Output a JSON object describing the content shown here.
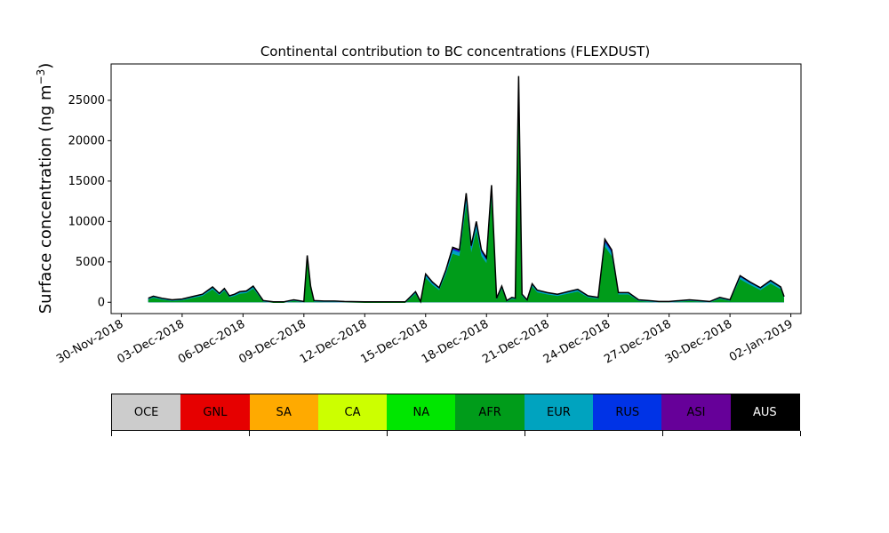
{
  "chart_data": {
    "type": "area",
    "title": "Continental contribution to BC concentrations (FLEXDUST)",
    "ylabel_main": "Surface concentration (ng m",
    "ylabel_sup": "−3",
    "ylabel_close": ")",
    "xlabel": "",
    "ylim": [
      -1400,
      29500
    ],
    "xlim": [
      "2018-11-29T12:00",
      "2019-01-02T12:00"
    ],
    "xticks": [
      "2018-11-30",
      "2018-12-03",
      "2018-12-06",
      "2018-12-09",
      "2018-12-12",
      "2018-12-15",
      "2018-12-18",
      "2018-12-21",
      "2018-12-24",
      "2018-12-27",
      "2018-12-30",
      "2019-01-02"
    ],
    "xtick_labels": [
      "30-Nov-2018",
      "03-Dec-2018",
      "06-Dec-2018",
      "09-Dec-2018",
      "12-Dec-2018",
      "15-Dec-2018",
      "18-Dec-2018",
      "21-Dec-2018",
      "24-Dec-2018",
      "27-Dec-2018",
      "30-Dec-2018",
      "02-Jan-2019"
    ],
    "yticks": [
      0,
      5000,
      10000,
      15000,
      20000,
      25000
    ],
    "ytick_labels": [
      "0",
      "5000",
      "10000",
      "15000",
      "20000",
      "25000"
    ],
    "grid": false,
    "legend_position": "bottom colorbar",
    "total_series": {
      "name": "Total",
      "x": [
        "2018-12-01T08:00",
        "2018-12-01T14:00",
        "2018-12-02T00:00",
        "2018-12-02T12:00",
        "2018-12-03T00:00",
        "2018-12-03T12:00",
        "2018-12-04T00:00",
        "2018-12-04T12:00",
        "2018-12-04T20:00",
        "2018-12-05T02:00",
        "2018-12-05T08:00",
        "2018-12-05T14:00",
        "2018-12-05T20:00",
        "2018-12-06T04:00",
        "2018-12-06T12:00",
        "2018-12-06T20:00",
        "2018-12-07T00:00",
        "2018-12-07T12:00",
        "2018-12-08T00:00",
        "2018-12-08T12:00",
        "2018-12-09T00:00",
        "2018-12-09T04:00",
        "2018-12-09T08:00",
        "2018-12-09T12:00",
        "2018-12-10T00:00",
        "2018-12-10T12:00",
        "2018-12-11T00:00",
        "2018-12-12T00:00",
        "2018-12-13T00:00",
        "2018-12-14T00:00",
        "2018-12-14T12:00",
        "2018-12-14T18:00",
        "2018-12-15T00:00",
        "2018-12-15T08:00",
        "2018-12-15T16:00",
        "2018-12-16T00:00",
        "2018-12-16T08:00",
        "2018-12-16T16:00",
        "2018-12-17T00:00",
        "2018-12-17T06:00",
        "2018-12-17T12:00",
        "2018-12-17T18:00",
        "2018-12-18T00:00",
        "2018-12-18T06:00",
        "2018-12-18T12:00",
        "2018-12-18T18:00",
        "2018-12-19T00:00",
        "2018-12-19T06:00",
        "2018-12-19T10:00",
        "2018-12-19T14:00",
        "2018-12-19T18:00",
        "2018-12-20T00:00",
        "2018-12-20T06:00",
        "2018-12-20T12:00",
        "2018-12-21T00:00",
        "2018-12-21T12:00",
        "2018-12-22T00:00",
        "2018-12-22T12:00",
        "2018-12-23T00:00",
        "2018-12-23T12:00",
        "2018-12-23T20:00",
        "2018-12-24T04:00",
        "2018-12-24T12:00",
        "2018-12-25T00:00",
        "2018-12-25T12:00",
        "2018-12-26T00:00",
        "2018-12-26T12:00",
        "2018-12-27T00:00",
        "2018-12-28T00:00",
        "2018-12-29T00:00",
        "2018-12-29T12:00",
        "2018-12-30T00:00",
        "2018-12-30T12:00",
        "2018-12-31T00:00",
        "2018-12-31T12:00",
        "2019-01-01T00:00",
        "2019-01-01T12:00",
        "2019-01-01T16:00"
      ],
      "y": [
        500,
        750,
        500,
        300,
        400,
        700,
        1000,
        1900,
        1100,
        1700,
        800,
        1000,
        1300,
        1400,
        2000,
        800,
        200,
        50,
        50,
        300,
        100,
        5800,
        2000,
        200,
        150,
        150,
        100,
        50,
        50,
        50,
        1300,
        100,
        3500,
        2500,
        1800,
        4000,
        6800,
        6500,
        13500,
        7000,
        10000,
        6500,
        5500,
        14500,
        500,
        2000,
        200,
        600,
        500,
        28000,
        1000,
        300,
        2300,
        1500,
        1200,
        1000,
        1300,
        1600,
        800,
        600,
        7800,
        6500,
        1200,
        1200,
        300,
        200,
        100,
        100,
        300,
        100,
        600,
        300,
        3300,
        2500,
        1800,
        2700,
        1900,
        700
      ],
      "color": "#000000"
    },
    "series": [
      {
        "name": "OCE",
        "color": "#cccccc"
      },
      {
        "name": "GNL",
        "color": "#e60000"
      },
      {
        "name": "SA",
        "color": "#ffaa00"
      },
      {
        "name": "CA",
        "color": "#ccff00"
      },
      {
        "name": "NA",
        "color": "#00e600"
      },
      {
        "name": "AFR",
        "color": "#009c1a"
      },
      {
        "name": "EUR",
        "color": "#00a3bf"
      },
      {
        "name": "RUS",
        "color": "#0033e6"
      },
      {
        "name": "ASI",
        "color": "#660099"
      },
      {
        "name": "AUS",
        "color": "#000000"
      }
    ]
  },
  "legend": {
    "items": [
      {
        "label": "OCE",
        "color": "#cccccc",
        "dark": false
      },
      {
        "label": "GNL",
        "color": "#e60000",
        "dark": false
      },
      {
        "label": "SA",
        "color": "#ffaa00",
        "dark": false
      },
      {
        "label": "CA",
        "color": "#ccff00",
        "dark": false
      },
      {
        "label": "NA",
        "color": "#00e600",
        "dark": false
      },
      {
        "label": "AFR",
        "color": "#009c1a",
        "dark": false
      },
      {
        "label": "EUR",
        "color": "#00a3bf",
        "dark": false
      },
      {
        "label": "RUS",
        "color": "#0033e6",
        "dark": false
      },
      {
        "label": "ASI",
        "color": "#660099",
        "dark": false
      },
      {
        "label": "AUS",
        "color": "#000000",
        "dark": true
      }
    ]
  }
}
